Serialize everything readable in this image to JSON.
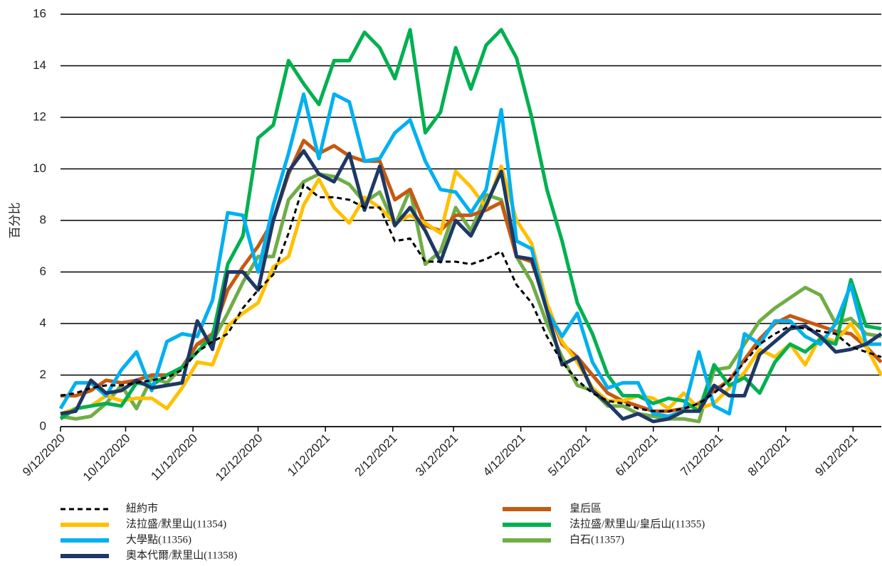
{
  "chart_data": {
    "type": "line",
    "y_label": "百分比",
    "x": [
      "9/12/2020",
      "9/19/2020",
      "9/26/2020",
      "10/3/2020",
      "10/10/2020",
      "10/17/2020",
      "10/24/2020",
      "10/31/2020",
      "11/7/2020",
      "11/14/2020",
      "11/21/2020",
      "11/28/2020",
      "12/5/2020",
      "12/12/2020",
      "12/19/2020",
      "12/26/2020",
      "1/2/2021",
      "1/9/2021",
      "1/16/2021",
      "1/23/2021",
      "1/30/2021",
      "2/6/2021",
      "2/13/2021",
      "2/20/2021",
      "2/27/2021",
      "3/6/2021",
      "3/13/2021",
      "3/20/2021",
      "3/27/2021",
      "4/3/2021",
      "4/10/2021",
      "4/17/2021",
      "4/24/2021",
      "5/1/2021",
      "5/8/2021",
      "5/15/2021",
      "5/22/2021",
      "5/29/2021",
      "6/5/2021",
      "6/12/2021",
      "6/19/2021",
      "6/26/2021",
      "7/3/2021",
      "7/10/2021",
      "7/17/2021",
      "7/24/2021",
      "7/31/2021",
      "8/7/2021",
      "8/14/2021",
      "8/21/2021",
      "8/28/2021",
      "9/4/2021",
      "9/11/2021",
      "9/18/2021",
      "9/25/2021"
    ],
    "xlim": [
      "9/12/2020",
      "9/25/2021"
    ],
    "xticks": [
      "9/12/2020",
      "10/12/2020",
      "11/12/2020",
      "12/12/2020",
      "1/12/2021",
      "2/12/2021",
      "3/12/2021",
      "4/12/2021",
      "5/12/2021",
      "6/12/2021",
      "7/12/2021",
      "8/12/2021",
      "9/12/2021"
    ],
    "ylim": [
      0,
      16
    ],
    "yticks": [
      0,
      2,
      4,
      6,
      8,
      10,
      12,
      14,
      16
    ],
    "grid": true,
    "series": [
      {
        "name": "紐約市",
        "color": "#000000",
        "dashed": true,
        "values": [
          1.2,
          1.3,
          1.5,
          1.6,
          1.6,
          1.7,
          1.8,
          1.9,
          2.2,
          2.9,
          3.3,
          3.6,
          4.6,
          5.3,
          5.9,
          7.5,
          9.4,
          8.9,
          8.9,
          8.8,
          8.5,
          8.5,
          7.2,
          7.3,
          6.4,
          6.4,
          6.4,
          6.3,
          6.5,
          6.8,
          5.5,
          4.8,
          3.5,
          2.5,
          1.8,
          1.3,
          1.0,
          0.9,
          0.7,
          0.6,
          0.6,
          0.7,
          0.9,
          1.3,
          1.8,
          2.5,
          3.2,
          3.6,
          3.9,
          3.8,
          3.7,
          3.6,
          3.1,
          2.9,
          2.7
        ]
      },
      {
        "name": "法拉盛/默里山(11354)",
        "color": "#ffc000",
        "values": [
          0.5,
          0.7,
          0.8,
          1.2,
          1.0,
          1.1,
          1.1,
          0.7,
          1.5,
          2.5,
          2.4,
          3.9,
          4.4,
          4.8,
          6.2,
          6.6,
          8.6,
          9.6,
          8.5,
          7.9,
          8.9,
          8.5,
          7.9,
          8.2,
          7.9,
          7.5,
          9.9,
          9.3,
          8.5,
          10.1,
          8.0,
          7.1,
          4.8,
          3.3,
          2.5,
          1.5,
          1.0,
          1.0,
          1.2,
          1.1,
          0.7,
          1.3,
          0.7,
          0.9,
          1.5,
          2.1,
          3.0,
          2.7,
          3.2,
          2.4,
          3.5,
          3.3,
          4.0,
          3.1,
          2.0
        ]
      },
      {
        "name": "大學點(11356)",
        "color": "#00b0f0",
        "values": [
          0.7,
          1.7,
          1.7,
          1.2,
          2.2,
          2.9,
          1.4,
          3.3,
          3.6,
          3.5,
          4.9,
          8.3,
          8.2,
          6.0,
          8.6,
          10.6,
          12.9,
          10.4,
          12.9,
          12.6,
          10.3,
          10.4,
          11.4,
          11.9,
          10.3,
          9.2,
          9.1,
          8.3,
          9.2,
          12.3,
          7.2,
          6.9,
          4.5,
          3.5,
          4.4,
          2.5,
          1.5,
          1.7,
          1.7,
          0.5,
          0.4,
          0.6,
          2.9,
          0.8,
          0.5,
          3.6,
          3.2,
          4.1,
          4.1,
          3.5,
          3.2,
          4.0,
          5.5,
          3.2,
          3.2
        ]
      },
      {
        "name": "奧本代爾/默里山(11358)",
        "color": "#1f3864",
        "values": [
          0.5,
          0.6,
          1.8,
          1.3,
          1.4,
          1.8,
          1.5,
          1.6,
          1.7,
          4.1,
          3.0,
          6.0,
          6.0,
          5.3,
          8.0,
          9.9,
          10.7,
          9.8,
          9.5,
          10.6,
          8.4,
          10.1,
          7.8,
          8.5,
          7.6,
          6.4,
          8.0,
          7.4,
          8.6,
          9.9,
          6.6,
          6.5,
          4.5,
          2.4,
          2.7,
          1.4,
          0.9,
          0.3,
          0.5,
          0.2,
          0.3,
          0.6,
          0.6,
          1.6,
          1.2,
          1.2,
          2.8,
          3.3,
          3.8,
          3.9,
          3.5,
          2.9,
          3.0,
          3.2,
          3.6
        ]
      },
      {
        "name": "皇后區",
        "color": "#c55a11",
        "values": [
          1.2,
          1.2,
          1.4,
          1.8,
          1.7,
          1.8,
          2.0,
          2.0,
          2.3,
          3.2,
          3.6,
          5.3,
          6.2,
          7.0,
          8.0,
          9.8,
          11.1,
          10.6,
          10.9,
          10.5,
          10.3,
          10.3,
          8.8,
          9.2,
          7.8,
          7.6,
          8.2,
          8.2,
          8.4,
          8.7,
          6.6,
          6.4,
          4.7,
          3.2,
          2.7,
          2.0,
          1.3,
          1.0,
          0.8,
          0.6,
          0.6,
          0.7,
          0.9,
          1.4,
          1.8,
          2.6,
          3.4,
          4.0,
          4.3,
          4.1,
          3.9,
          3.7,
          3.6,
          3.1,
          2.5
        ]
      },
      {
        "name": "法拉盛/默里山/皇后山(11355)",
        "color": "#00b050",
        "values": [
          0.3,
          0.7,
          0.8,
          0.9,
          0.8,
          1.7,
          1.6,
          2.0,
          2.3,
          2.9,
          3.5,
          6.3,
          7.4,
          11.2,
          11.7,
          14.2,
          13.3,
          12.5,
          14.2,
          14.2,
          15.3,
          14.7,
          13.5,
          15.4,
          11.4,
          12.2,
          14.7,
          13.1,
          14.8,
          15.4,
          14.3,
          12.0,
          9.2,
          7.2,
          4.8,
          3.6,
          2.0,
          1.2,
          1.2,
          0.9,
          1.1,
          1.0,
          0.6,
          2.4,
          1.6,
          1.9,
          1.3,
          2.5,
          3.2,
          2.9,
          3.4,
          3.2,
          5.7,
          3.9,
          3.8
        ]
      },
      {
        "name": "白石(11357)",
        "color": "#70ad47",
        "values": [
          0.4,
          0.3,
          0.4,
          0.9,
          1.6,
          0.7,
          1.9,
          1.7,
          2.3,
          3.2,
          3.3,
          4.4,
          5.6,
          6.6,
          6.6,
          8.8,
          9.5,
          9.8,
          9.7,
          9.4,
          8.7,
          9.1,
          7.8,
          9.2,
          6.3,
          6.8,
          8.5,
          7.6,
          9.0,
          8.8,
          6.6,
          5.6,
          4.0,
          2.7,
          1.6,
          1.4,
          0.8,
          0.8,
          0.5,
          0.4,
          0.3,
          0.3,
          0.2,
          2.2,
          2.3,
          3.2,
          4.1,
          4.6,
          5.0,
          5.4,
          5.1,
          4.0,
          4.2,
          3.6,
          3.5
        ]
      }
    ]
  }
}
